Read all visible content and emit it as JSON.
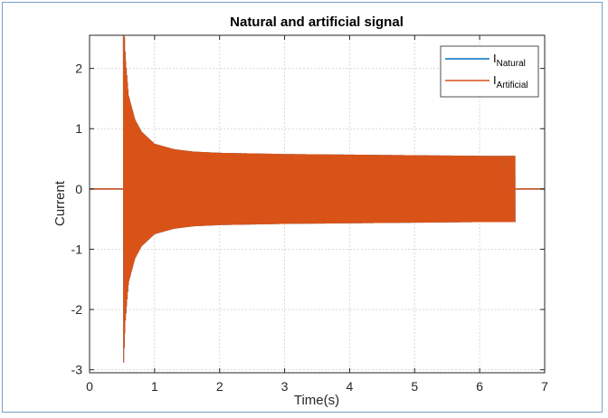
{
  "chart_data": {
    "type": "line",
    "title": "Natural and artificial signal",
    "xlabel": "Time(s)",
    "ylabel": "Current",
    "xlim": [
      0,
      7
    ],
    "ylim": [
      -3.05,
      2.55
    ],
    "xticks": [
      0,
      1,
      2,
      3,
      4,
      5,
      6,
      7
    ],
    "yticks": [
      -3,
      -2,
      -1,
      0,
      1,
      2
    ],
    "grid": true,
    "legend_position": "top-right",
    "series": [
      {
        "name_base": "I",
        "name_sub": "Natural",
        "color": "#0072bd",
        "onset": 0.52,
        "end": 6.55,
        "envelope": [
          [
            0.52,
            3.0
          ],
          [
            0.55,
            2.2
          ],
          [
            0.6,
            1.55
          ],
          [
            0.7,
            1.15
          ],
          [
            0.8,
            0.95
          ],
          [
            1.0,
            0.75
          ],
          [
            1.3,
            0.66
          ],
          [
            1.6,
            0.62
          ],
          [
            2.0,
            0.6
          ],
          [
            3.0,
            0.58
          ],
          [
            4.0,
            0.57
          ],
          [
            5.0,
            0.56
          ],
          [
            6.0,
            0.55
          ],
          [
            6.55,
            0.55
          ]
        ],
        "tail_levels": [
          0.5,
          -0.5
        ]
      },
      {
        "name_base": "I",
        "name_sub": "Artificial",
        "color": "#d95319",
        "onset": 0.52,
        "end": 6.55,
        "envelope": [
          [
            0.52,
            3.0
          ],
          [
            0.55,
            2.2
          ],
          [
            0.6,
            1.55
          ],
          [
            0.7,
            1.15
          ],
          [
            0.8,
            0.95
          ],
          [
            1.0,
            0.75
          ],
          [
            1.3,
            0.66
          ],
          [
            1.6,
            0.62
          ],
          [
            2.0,
            0.6
          ],
          [
            3.0,
            0.58
          ],
          [
            4.0,
            0.57
          ],
          [
            5.0,
            0.56
          ],
          [
            6.0,
            0.55
          ],
          [
            6.35,
            0.55
          ]
        ],
        "tail_levels": [
          0.25,
          -0.25
        ]
      }
    ]
  }
}
